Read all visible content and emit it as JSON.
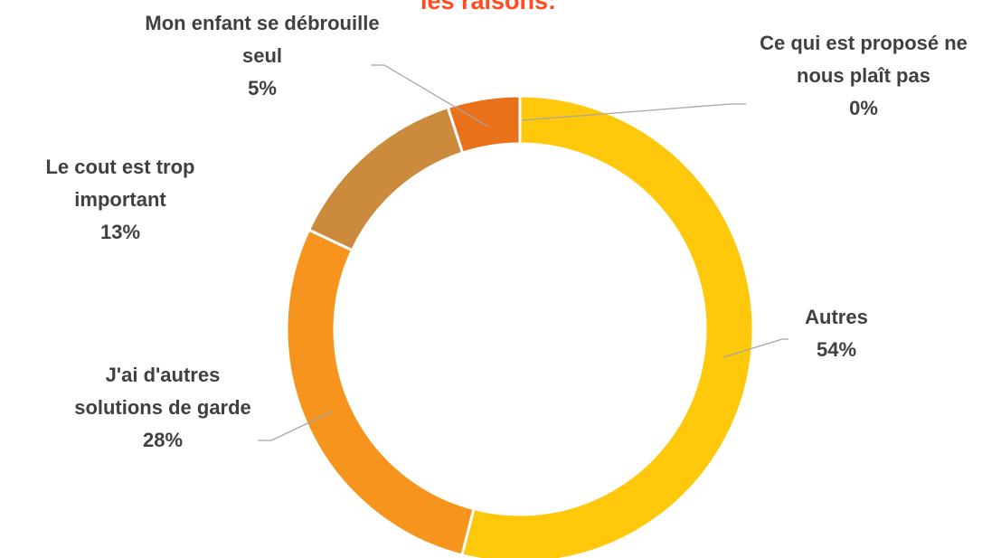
{
  "chart_data": {
    "type": "donut",
    "title": "les raisons:",
    "categories": [
      "Ce qui est proposé ne nous plaît pas",
      "Autres",
      "J'ai d'autres solutions de garde",
      "Le cout est trop important",
      "Mon enfant se débrouille seul"
    ],
    "values": [
      0,
      54,
      28,
      13,
      5
    ],
    "value_labels": [
      "0%",
      "54%",
      "28%",
      "13%",
      "5%"
    ],
    "colors": [
      "#F4B183",
      "#FFC80A",
      "#F7941D",
      "#CC8A3C",
      "#E8711A"
    ]
  }
}
